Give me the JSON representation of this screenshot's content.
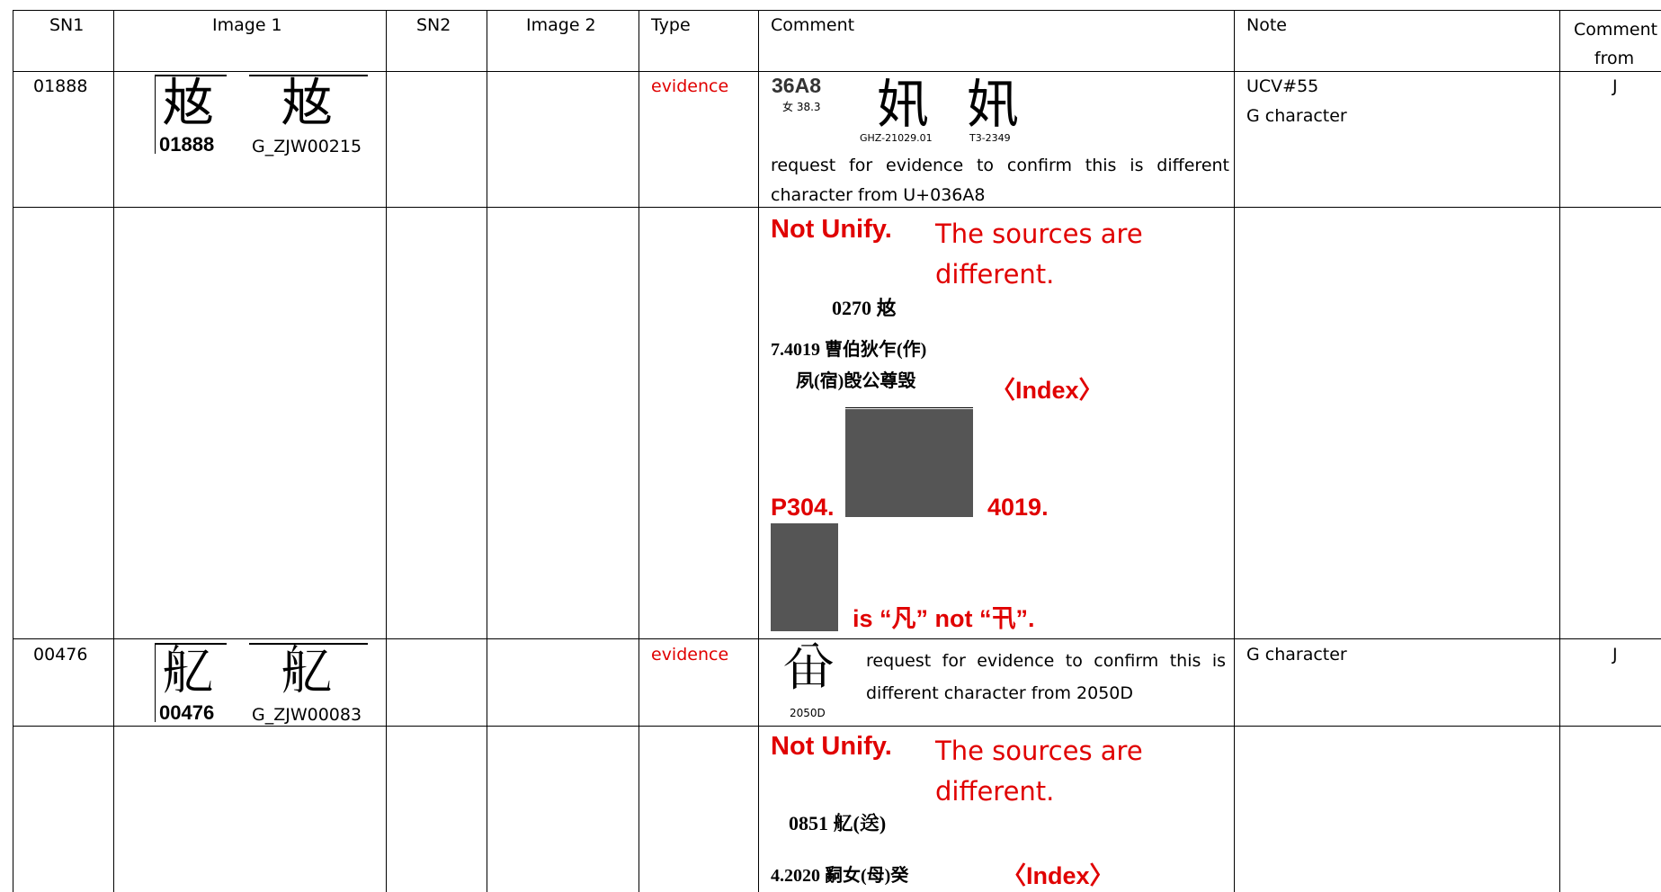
{
  "table": {
    "headers": [
      "SN1",
      "Image 1",
      "SN2",
      "Image 2",
      "Type",
      "Comment",
      "Note",
      "Comment from"
    ],
    "rows": [
      {
        "sn1": "01888",
        "image1": {
          "glyph1": "奿",
          "code1": "01888",
          "glyph2": "奿",
          "code2": "G_ZJW00215"
        },
        "type": "evidence",
        "comment": {
          "code": "36A8",
          "radical": "女 38.3",
          "glyph1": "㚨",
          "glyph2": "㚨",
          "source1": "GHZ-21029.01",
          "source2": "T3-2349",
          "text": "request for evidence to confirm this is different character from U+036A8"
        },
        "note": [
          "UCV#55",
          "G character"
        ],
        "from": "J"
      },
      {
        "comment": {
          "verdict": "Not Unify.",
          "reason": "The sources are different.",
          "entry": "0270 奿",
          "citation1": "7.4019 曹伯狄乍(作)",
          "citation2": "夙(宿)𣪘公尊毁",
          "index": "〈Index〉",
          "page": "P304.",
          "number": "4019.",
          "conclusion": "is “凡” not “卂”."
        }
      },
      {
        "sn1": "00476",
        "image1": {
          "glyph1": "𦨇",
          "code1": "00476",
          "glyph2": "𦨇",
          "code2": "G_ZJW00083"
        },
        "type": "evidence",
        "comment": {
          "glyph": "𠔍",
          "code": "2050D",
          "text": "request for evidence to confirm this is different character from 2050D"
        },
        "note": [
          "G character"
        ],
        "from": "J"
      },
      {
        "comment": {
          "verdict": "Not Unify.",
          "reason": "The sources are different.",
          "entry": "0851 𦨇(送)",
          "citation": "4.2020 𤔲女(母)癸",
          "index": "〈Index〉"
        }
      }
    ]
  }
}
